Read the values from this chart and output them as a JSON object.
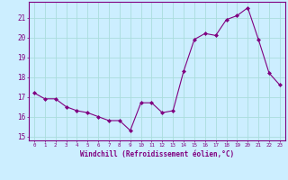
{
  "x": [
    0,
    1,
    2,
    3,
    4,
    5,
    6,
    7,
    8,
    9,
    10,
    11,
    12,
    13,
    14,
    15,
    16,
    17,
    18,
    19,
    20,
    21,
    22,
    23
  ],
  "y": [
    17.2,
    16.9,
    16.9,
    16.5,
    16.3,
    16.2,
    16.0,
    15.8,
    15.8,
    15.3,
    16.7,
    16.7,
    16.2,
    16.3,
    18.3,
    19.9,
    20.2,
    20.1,
    20.9,
    21.1,
    21.5,
    19.9,
    18.2,
    17.6
  ],
  "ylim": [
    14.8,
    21.8
  ],
  "yticks": [
    15,
    16,
    17,
    18,
    19,
    20,
    21
  ],
  "xtick_labels": [
    "0",
    "1",
    "2",
    "3",
    "4",
    "5",
    "6",
    "7",
    "8",
    "9",
    "10",
    "11",
    "12",
    "13",
    "14",
    "15",
    "16",
    "17",
    "18",
    "19",
    "20",
    "21",
    "22",
    "23"
  ],
  "line_color": "#800080",
  "marker": "D",
  "marker_size": 2,
  "line_width": 0.8,
  "bg_color": "#cceeff",
  "grid_color": "#aadddd",
  "xlabel": "Windchill (Refroidissement éolien,°C)",
  "spine_color": "#800080",
  "tick_color": "#800080",
  "label_color": "#800080",
  "font_family": "monospace"
}
